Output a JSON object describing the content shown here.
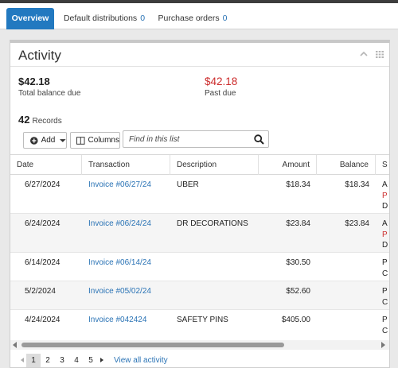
{
  "tabs": [
    {
      "label": "Overview",
      "count": ""
    },
    {
      "label": "Default distributions",
      "count": "0"
    },
    {
      "label": "Purchase orders",
      "count": "0"
    }
  ],
  "activity": {
    "title": "Activity",
    "total_balance": {
      "amount": "$42.18",
      "label": "Total balance due"
    },
    "past_due": {
      "amount": "$42.18",
      "label": "Past due"
    },
    "records_count": "42",
    "records_label": "Records",
    "add_label": "Add",
    "columns_label": "Columns",
    "search_placeholder": "Find in this list"
  },
  "table": {
    "headers": [
      "Date",
      "Transaction",
      "Description",
      "Amount",
      "Balance",
      "S"
    ],
    "rows": [
      {
        "date": "6/27/2024",
        "transaction": "Invoice #06/27/24",
        "description": "UBER",
        "amount": "$18.34",
        "balance": "$18.34",
        "status": [
          "A",
          "P",
          "D"
        ]
      },
      {
        "date": "6/24/2024",
        "transaction": "Invoice #06/24/24",
        "description": "DR DECORATIONS",
        "amount": "$23.84",
        "balance": "$23.84",
        "status": [
          "A",
          "P",
          "D"
        ]
      },
      {
        "date": "6/14/2024",
        "transaction": "Invoice #06/14/24",
        "description": "",
        "amount": "$30.50",
        "balance": "",
        "status": [
          "P",
          "C"
        ]
      },
      {
        "date": "5/2/2024",
        "transaction": "Invoice #05/02/24",
        "description": "",
        "amount": "$52.60",
        "balance": "",
        "status": [
          "P",
          "C"
        ]
      },
      {
        "date": "4/24/2024",
        "transaction": "Invoice #042424",
        "description": "SAFETY PINS",
        "amount": "$405.00",
        "balance": "",
        "status": [
          "P",
          "C"
        ]
      }
    ]
  },
  "pagination": {
    "pages": [
      "1",
      "2",
      "3",
      "4",
      "5"
    ],
    "current": "1",
    "view_all_label": "View all activity"
  },
  "colors": {
    "accent": "#2279c0",
    "link": "#2a73b5",
    "past_due": "#cc2b2b"
  }
}
